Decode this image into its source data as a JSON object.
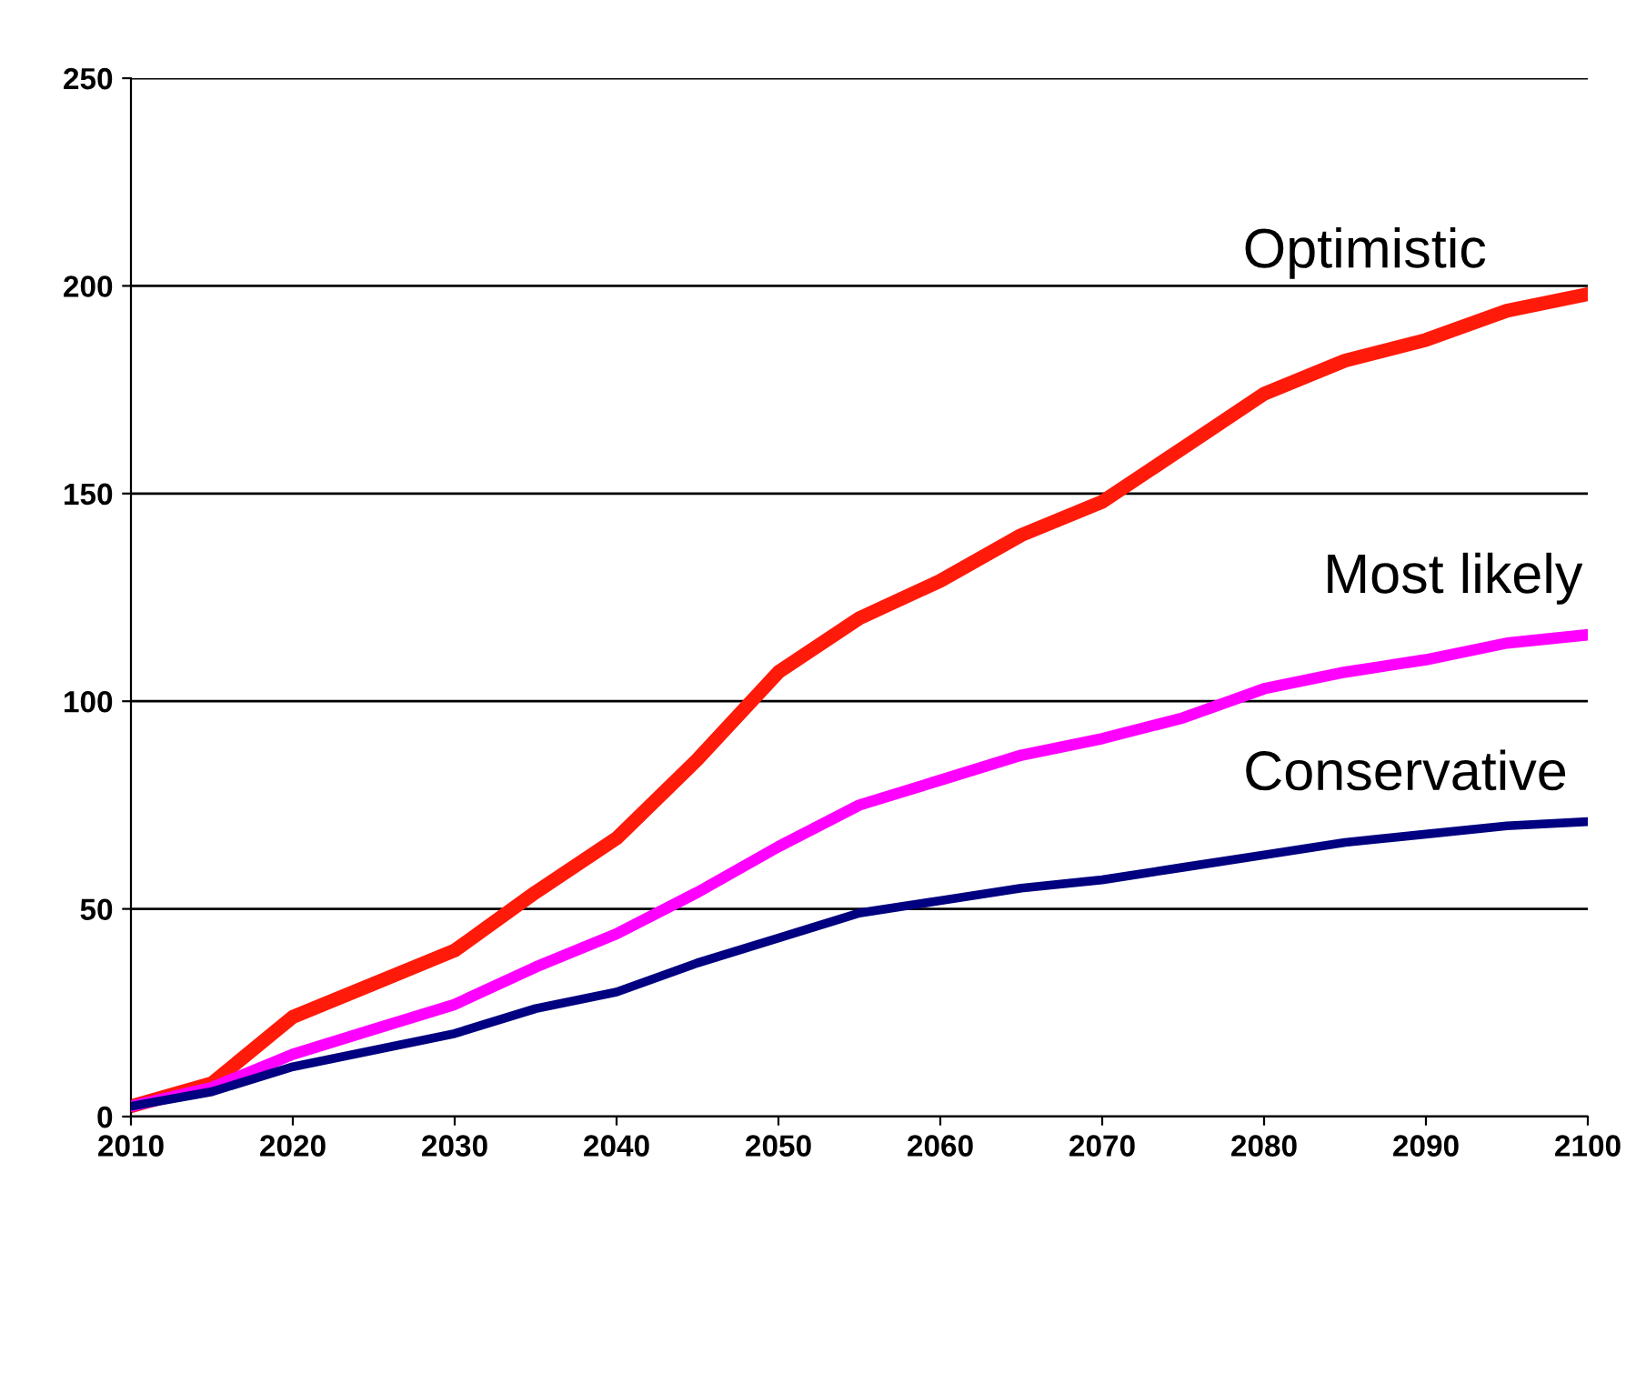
{
  "chart_data": {
    "type": "line",
    "x": [
      2010,
      2015,
      2020,
      2025,
      2030,
      2035,
      2040,
      2045,
      2050,
      2055,
      2060,
      2065,
      2070,
      2075,
      2080,
      2085,
      2090,
      2095,
      2100
    ],
    "series": [
      {
        "name": "Optimistic",
        "color": "#ff1a0a",
        "values": [
          2.5,
          8,
          24,
          32,
          40,
          54,
          67,
          86,
          107,
          120,
          129,
          140,
          148,
          161,
          174,
          182,
          187,
          194,
          198
        ]
      },
      {
        "name": "Most likely",
        "color": "#ff00ff",
        "values": [
          2.5,
          7,
          15,
          21,
          27,
          36,
          44,
          54,
          65,
          75,
          81,
          87,
          91,
          96,
          103,
          107,
          110,
          114,
          116
        ]
      },
      {
        "name": "Conservative",
        "color": "#000080",
        "values": [
          2.5,
          6,
          12,
          16,
          20,
          26,
          30,
          37,
          43,
          49,
          52,
          55,
          57,
          60,
          63,
          66,
          68,
          70,
          71
        ]
      }
    ],
    "xlim": [
      2010,
      2100
    ],
    "xticks": [
      2010,
      2020,
      2030,
      2040,
      2050,
      2060,
      2070,
      2080,
      2090,
      2100
    ],
    "ylim": [
      0,
      250
    ],
    "yticks": [
      0,
      50,
      100,
      150,
      200,
      250
    ],
    "grid": "y",
    "legend": false,
    "marker": "none",
    "line_style": "solid"
  }
}
